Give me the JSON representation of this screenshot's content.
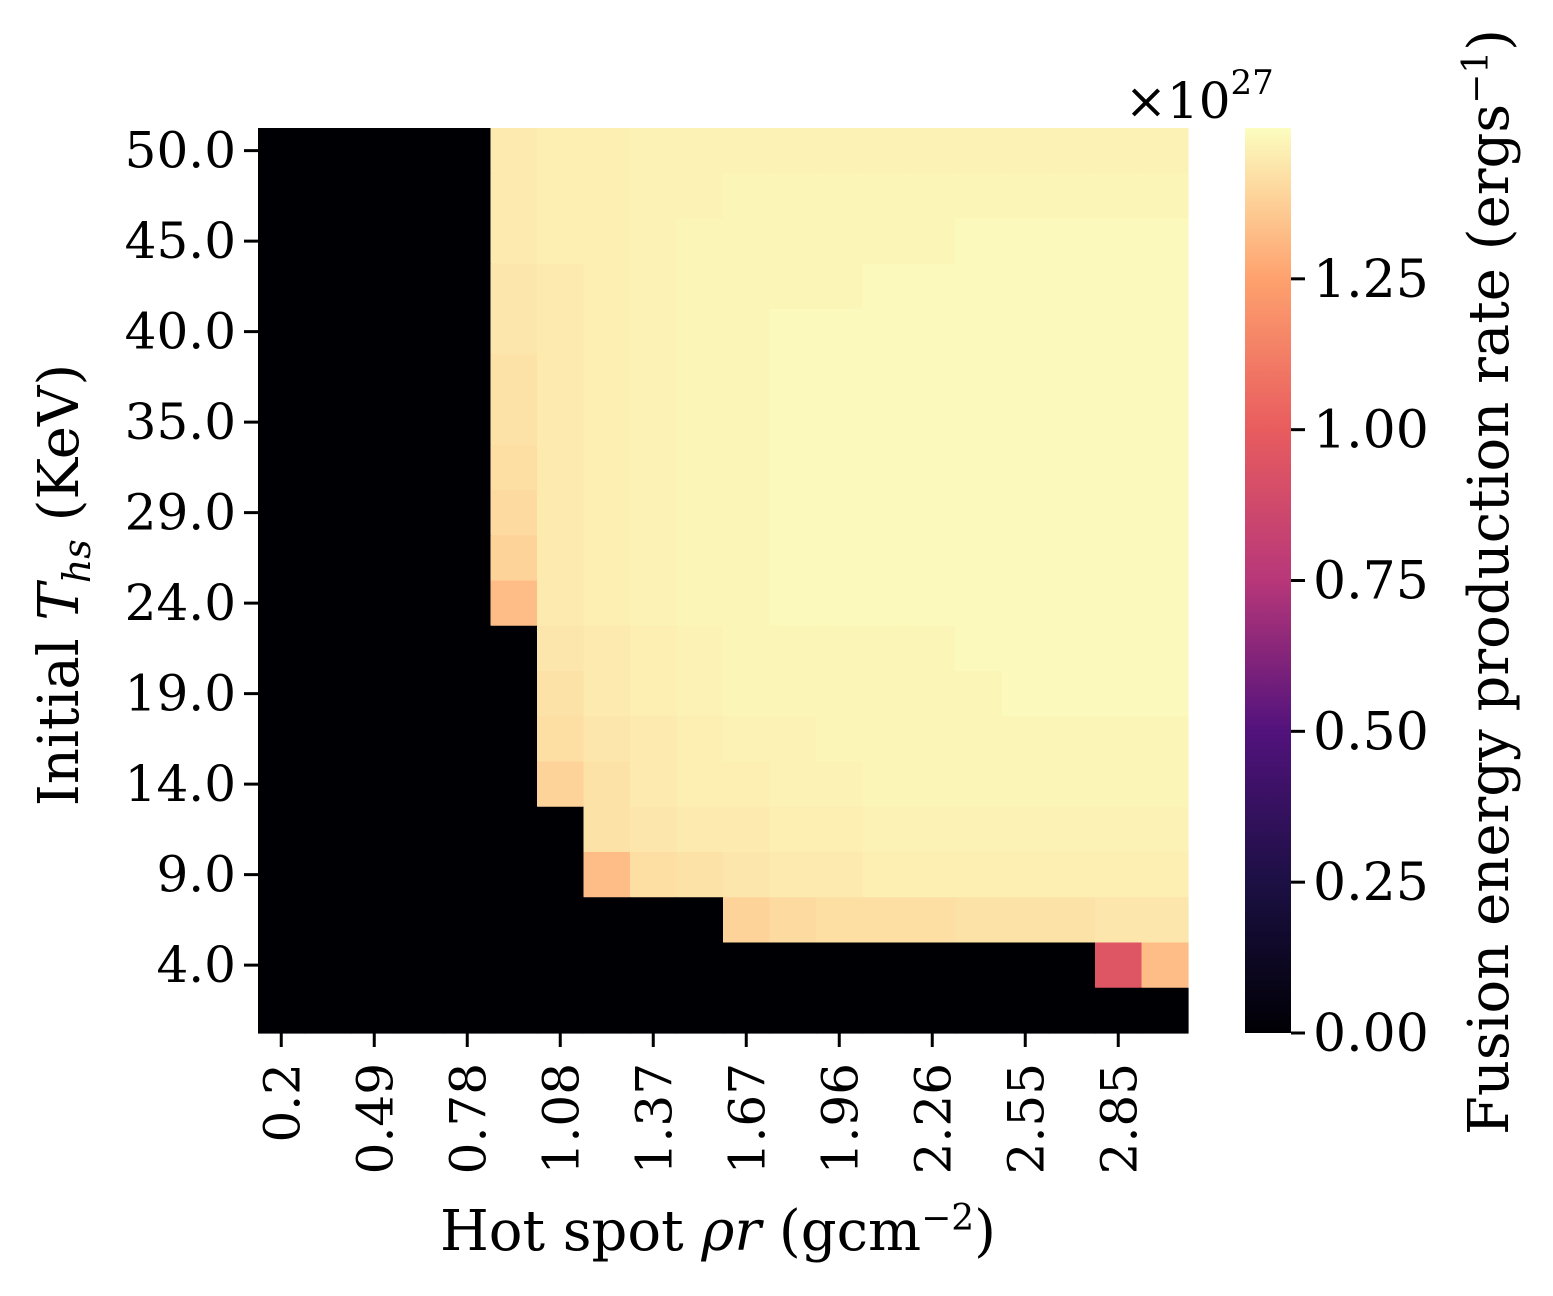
{
  "chart_data": {
    "type": "heatmap",
    "title": "",
    "xlabel": "Hot spot ρr (gcm⁻²)",
    "xlabel_parts": [
      "Hot spot ",
      "ρr",
      " (gcm",
      "−2",
      ")"
    ],
    "ylabel": "Initial T_hs (KeV)",
    "ylabel_parts": [
      "Initial ",
      "T",
      "hs",
      " (KeV)"
    ],
    "x_tick_labels": [
      "0.2",
      "0.49",
      "0.78",
      "1.08",
      "1.37",
      "1.67",
      "1.96",
      "2.26",
      "2.55",
      "2.85"
    ],
    "y_tick_labels": [
      "50.0",
      "45.0",
      "40.0",
      "35.0",
      "29.0",
      "24.0",
      "19.0",
      "14.0",
      "9.0",
      "4.0"
    ],
    "colorscale": "magma",
    "color_range": [
      0,
      1.5
    ],
    "colorbar": {
      "label_parts": [
        "Fusion energy production rate (ergs",
        "−1",
        ")"
      ],
      "multiplier_parts": [
        "×10",
        "27"
      ],
      "ticks": [
        0.0,
        0.25,
        0.5,
        0.75,
        1.0,
        1.25
      ],
      "tick_labels": [
        "0.00",
        "0.25",
        "0.50",
        "0.75",
        "1.00",
        "1.25"
      ]
    },
    "values_unit": "1e27 ergs^-1",
    "rows_top_to_bottom": [
      [
        0,
        0,
        0,
        0,
        0,
        1.45,
        1.46,
        1.46,
        1.47,
        1.47,
        1.47,
        1.47,
        1.47,
        1.47,
        1.47,
        1.47,
        1.47,
        1.47,
        1.47,
        1.47
      ],
      [
        0,
        0,
        0,
        0,
        0,
        1.45,
        1.46,
        1.46,
        1.47,
        1.47,
        1.48,
        1.48,
        1.48,
        1.48,
        1.48,
        1.48,
        1.48,
        1.48,
        1.48,
        1.48
      ],
      [
        0,
        0,
        0,
        0,
        0,
        1.45,
        1.46,
        1.46,
        1.47,
        1.48,
        1.48,
        1.48,
        1.48,
        1.48,
        1.48,
        1.49,
        1.49,
        1.49,
        1.49,
        1.49
      ],
      [
        0,
        0,
        0,
        0,
        0,
        1.44,
        1.45,
        1.46,
        1.47,
        1.48,
        1.48,
        1.48,
        1.48,
        1.49,
        1.49,
        1.49,
        1.49,
        1.49,
        1.49,
        1.49
      ],
      [
        0,
        0,
        0,
        0,
        0,
        1.44,
        1.45,
        1.46,
        1.47,
        1.48,
        1.48,
        1.49,
        1.49,
        1.49,
        1.49,
        1.49,
        1.49,
        1.49,
        1.49,
        1.49
      ],
      [
        0,
        0,
        0,
        0,
        0,
        1.43,
        1.45,
        1.46,
        1.47,
        1.48,
        1.48,
        1.49,
        1.49,
        1.49,
        1.49,
        1.49,
        1.49,
        1.49,
        1.49,
        1.49
      ],
      [
        0,
        0,
        0,
        0,
        0,
        1.43,
        1.45,
        1.46,
        1.47,
        1.48,
        1.48,
        1.49,
        1.49,
        1.49,
        1.49,
        1.49,
        1.49,
        1.49,
        1.49,
        1.49
      ],
      [
        0,
        0,
        0,
        0,
        0,
        1.42,
        1.45,
        1.46,
        1.47,
        1.48,
        1.48,
        1.49,
        1.49,
        1.49,
        1.49,
        1.49,
        1.49,
        1.49,
        1.49,
        1.49
      ],
      [
        0,
        0,
        0,
        0,
        0,
        1.41,
        1.45,
        1.46,
        1.47,
        1.48,
        1.48,
        1.49,
        1.49,
        1.49,
        1.49,
        1.49,
        1.49,
        1.49,
        1.49,
        1.49
      ],
      [
        0,
        0,
        0,
        0,
        0,
        1.39,
        1.45,
        1.46,
        1.47,
        1.48,
        1.48,
        1.49,
        1.49,
        1.49,
        1.49,
        1.49,
        1.49,
        1.49,
        1.49,
        1.49
      ],
      [
        0,
        0,
        0,
        0,
        0,
        1.33,
        1.45,
        1.46,
        1.47,
        1.48,
        1.48,
        1.49,
        1.49,
        1.49,
        1.49,
        1.49,
        1.49,
        1.49,
        1.49,
        1.49
      ],
      [
        0,
        0,
        0,
        0,
        0,
        0,
        1.44,
        1.45,
        1.46,
        1.47,
        1.48,
        1.48,
        1.48,
        1.48,
        1.48,
        1.49,
        1.49,
        1.49,
        1.49,
        1.49
      ],
      [
        0,
        0,
        0,
        0,
        0,
        0,
        1.43,
        1.45,
        1.46,
        1.47,
        1.48,
        1.48,
        1.48,
        1.48,
        1.48,
        1.48,
        1.49,
        1.49,
        1.49,
        1.49
      ],
      [
        0,
        0,
        0,
        0,
        0,
        0,
        1.42,
        1.44,
        1.45,
        1.46,
        1.47,
        1.47,
        1.48,
        1.48,
        1.48,
        1.48,
        1.48,
        1.48,
        1.48,
        1.48
      ],
      [
        0,
        0,
        0,
        0,
        0,
        0,
        1.39,
        1.43,
        1.45,
        1.46,
        1.46,
        1.47,
        1.47,
        1.48,
        1.48,
        1.48,
        1.48,
        1.48,
        1.48,
        1.48
      ],
      [
        0,
        0,
        0,
        0,
        0,
        0,
        0,
        1.43,
        1.44,
        1.45,
        1.45,
        1.46,
        1.46,
        1.47,
        1.47,
        1.47,
        1.47,
        1.47,
        1.47,
        1.47
      ],
      [
        0,
        0,
        0,
        0,
        0,
        0,
        0,
        1.33,
        1.42,
        1.43,
        1.44,
        1.45,
        1.45,
        1.46,
        1.46,
        1.46,
        1.46,
        1.46,
        1.46,
        1.46
      ],
      [
        0,
        0,
        0,
        0,
        0,
        0,
        0,
        0,
        0,
        0,
        1.39,
        1.41,
        1.42,
        1.42,
        1.42,
        1.43,
        1.43,
        1.43,
        1.44,
        1.44
      ],
      [
        0,
        0,
        0,
        0,
        0,
        0,
        0,
        0,
        0,
        0,
        0,
        0,
        0,
        0,
        0,
        0,
        0,
        0,
        0.95,
        1.33
      ],
      [
        0,
        0,
        0,
        0,
        0,
        0,
        0,
        0,
        0,
        0,
        0,
        0,
        0,
        0,
        0,
        0,
        0,
        0,
        0,
        0
      ]
    ]
  }
}
